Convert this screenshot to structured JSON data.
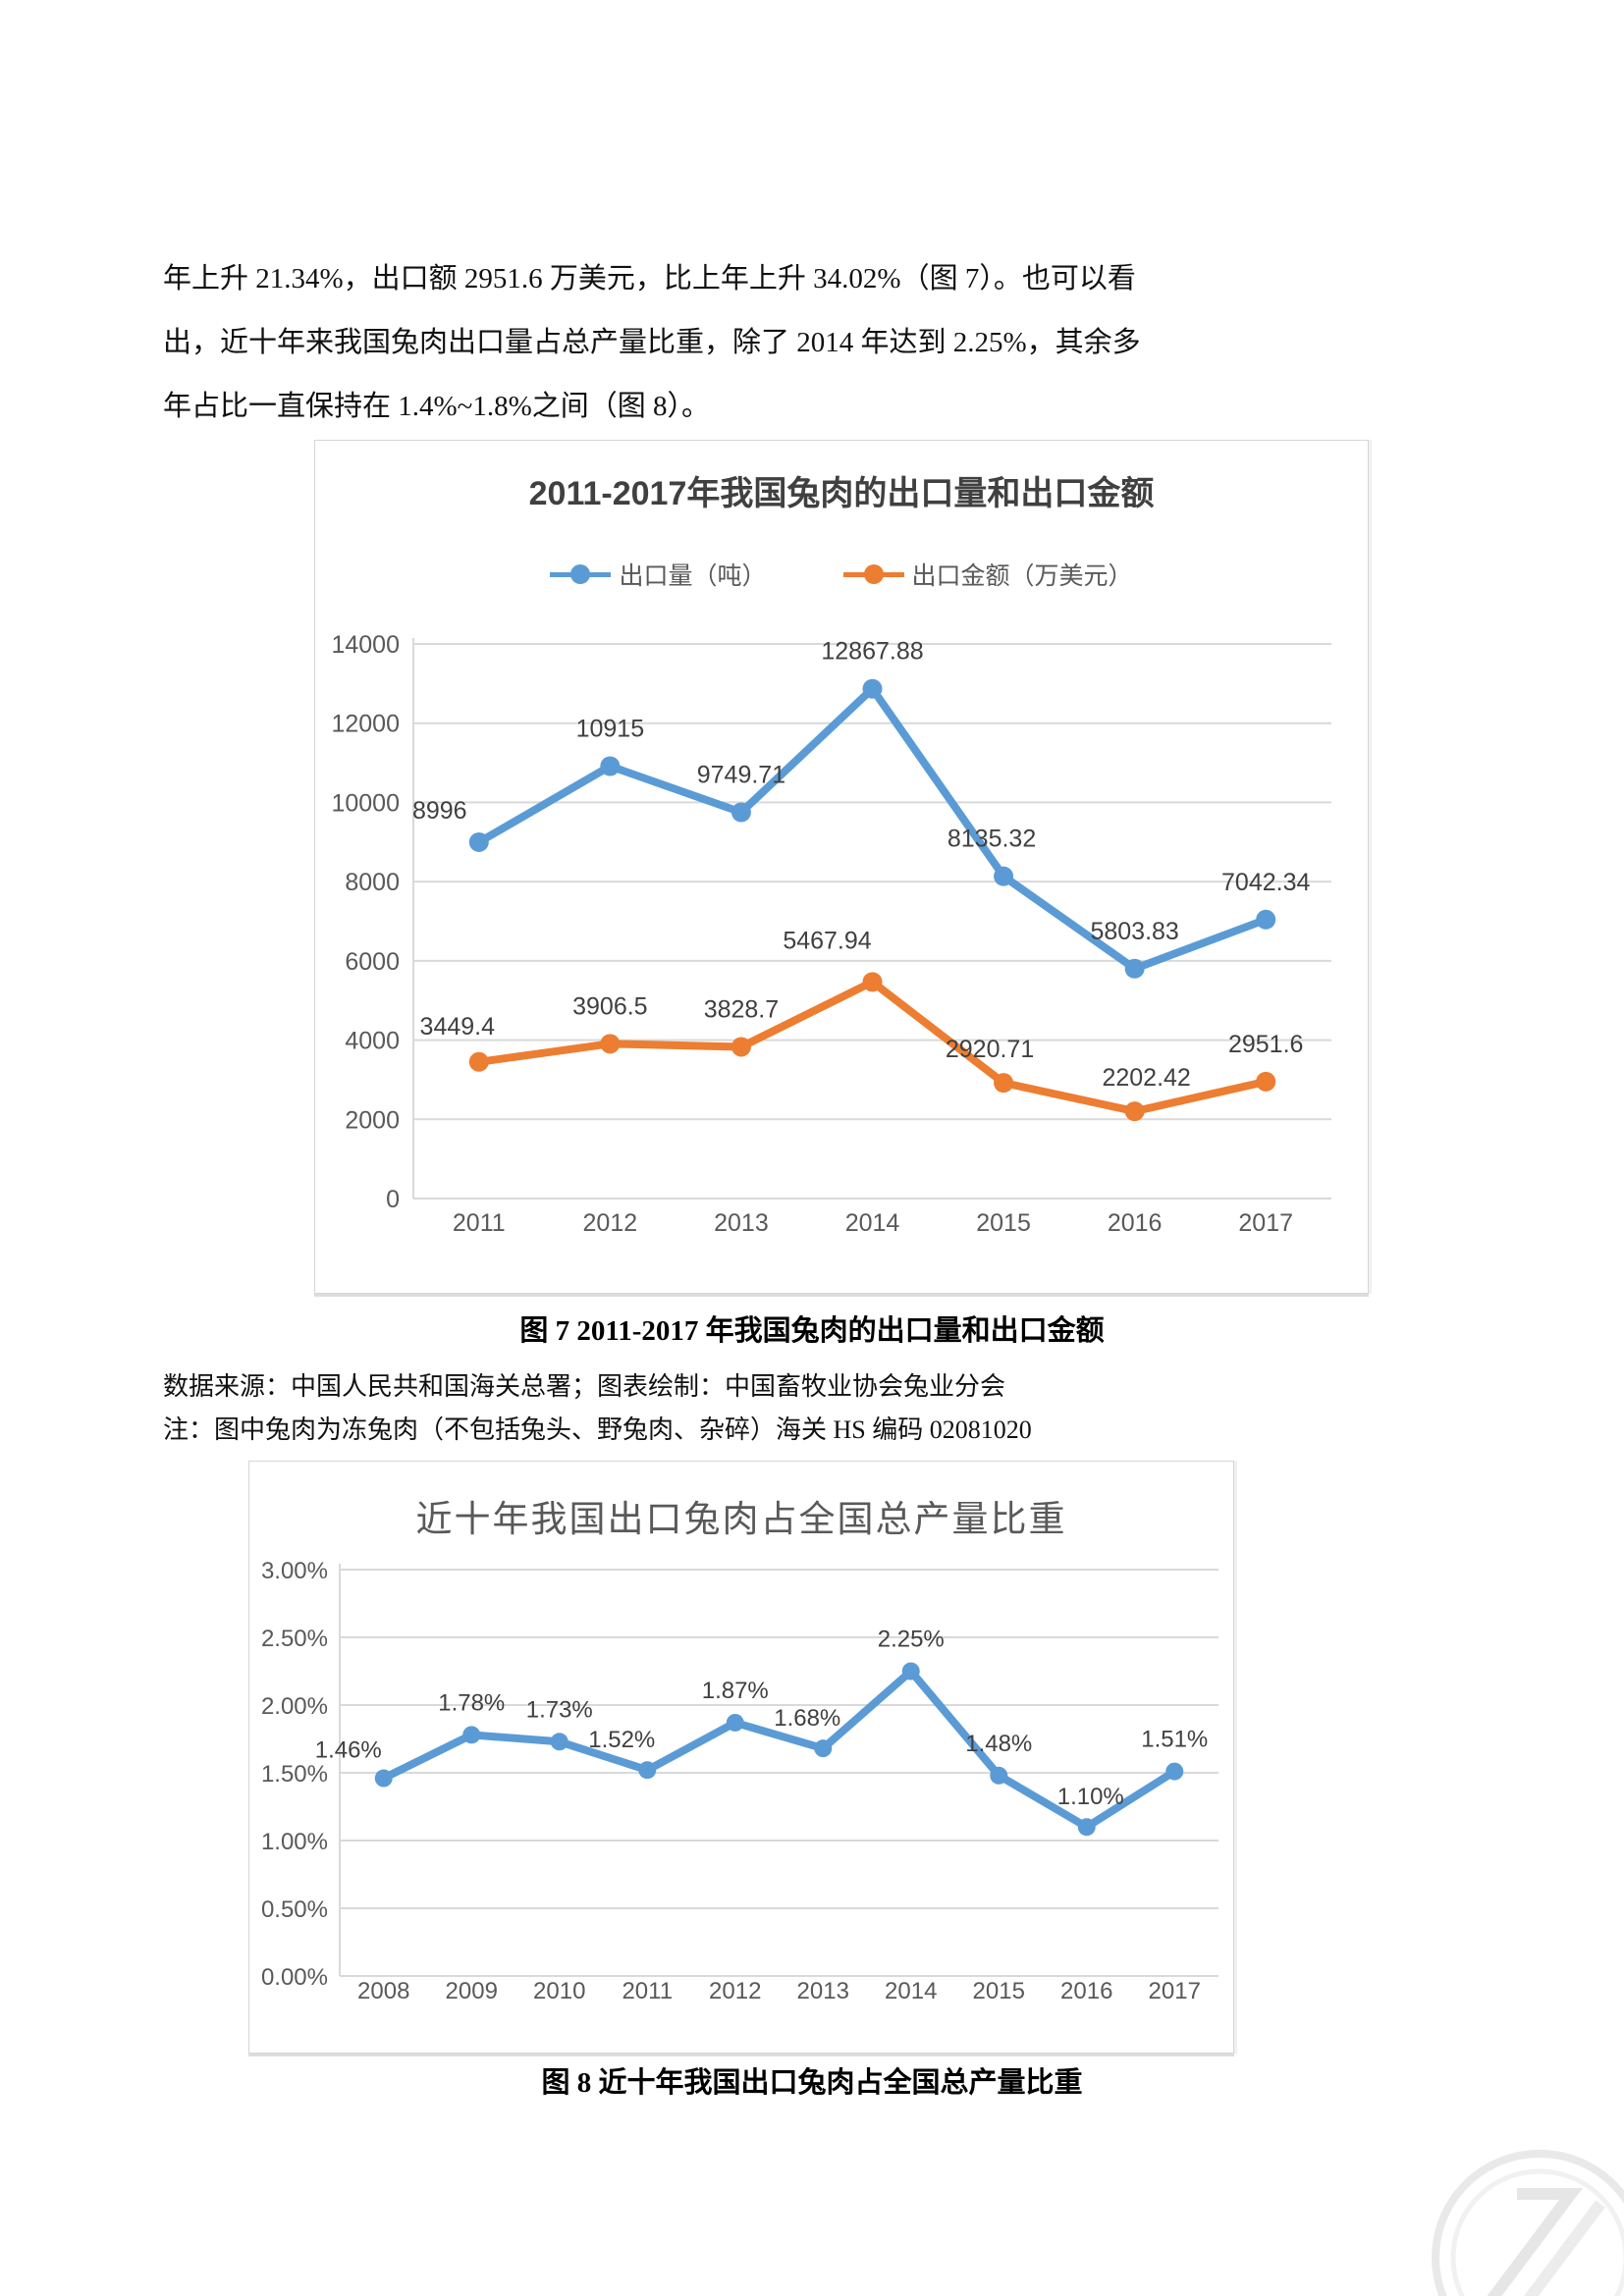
{
  "page": {
    "paragraph_lines": [
      "年上升 21.34%，出口额 2951.6 万美元，比上年上升 34.02%（图 7）。也可以看",
      "出，近十年来我国兔肉出口量占总产量比重，除了 2014 年达到 2.25%，其余多",
      "年占比一直保持在 1.4%~1.8%之间（图 8）。"
    ],
    "caption1": "图 7 2011-2017 年我国兔肉的出口量和出口金额",
    "source_line1": "数据来源：中国人民共和国海关总署；图表绘制：中国畜牧业协会兔业分会",
    "source_line2": "注：图中兔肉为冻兔肉（不包括兔头、野兔肉、杂碎）海关 HS 编码 02081020",
    "caption2": "图 8 近十年我国出口兔肉占全国总产量比重"
  },
  "colors": {
    "blue": "#5B9BD5",
    "orange": "#ED7D31",
    "grid": "#D9D9D9",
    "axis_text": "#595959",
    "label_text": "#404040"
  },
  "icons": {
    "watermark": "circular-swoosh-logo"
  },
  "chart_data": [
    {
      "type": "line",
      "title": "2011-2017年我国兔肉的出口量和出口金额",
      "categories": [
        "2011",
        "2012",
        "2013",
        "2014",
        "2015",
        "2016",
        "2017"
      ],
      "series": [
        {
          "name": "出口量（吨）",
          "color": "#5B9BD5",
          "values": [
            8996,
            10915,
            9749.71,
            12867.88,
            8135.32,
            5803.83,
            7042.34
          ],
          "labels": [
            "8996",
            "10915",
            "9749.71",
            "12867.88",
            "8135.32",
            "5803.83",
            "7042.34"
          ]
        },
        {
          "name": "出口金额（万美元）",
          "color": "#ED7D31",
          "values": [
            3449.4,
            3906.5,
            3828.7,
            5467.94,
            2920.71,
            2202.42,
            2951.6
          ],
          "labels": [
            "3449.4",
            "3906.5",
            "3828.7",
            "5467.94",
            "2920.71",
            "2202.42",
            "2951.6"
          ]
        }
      ],
      "ylim": [
        0,
        14000
      ],
      "ytick_step": 2000,
      "ytick_labels": [
        "0",
        "2000",
        "4000",
        "6000",
        "8000",
        "10000",
        "12000",
        "14000"
      ],
      "legend_position": "top",
      "grid": true
    },
    {
      "type": "line",
      "title": "近十年我国出口兔肉占全国总产量比重",
      "categories": [
        "2008",
        "2009",
        "2010",
        "2011",
        "2012",
        "2013",
        "2014",
        "2015",
        "2016",
        "2017"
      ],
      "series": [
        {
          "name": "出口兔肉占全国总产量比重",
          "color": "#5B9BD5",
          "values": [
            1.46,
            1.78,
            1.73,
            1.52,
            1.87,
            1.68,
            2.25,
            1.48,
            1.1,
            1.51
          ],
          "labels": [
            "1.46%",
            "1.78%",
            "1.73%",
            "1.52%",
            "1.87%",
            "1.68%",
            "2.25%",
            "1.48%",
            "1.10%",
            "1.51%"
          ]
        }
      ],
      "ylim": [
        0,
        3
      ],
      "ytick_step": 0.5,
      "ytick_labels": [
        "0.00%",
        "0.50%",
        "1.00%",
        "1.50%",
        "2.00%",
        "2.50%",
        "3.00%"
      ],
      "legend_position": "none",
      "grid": true
    }
  ]
}
